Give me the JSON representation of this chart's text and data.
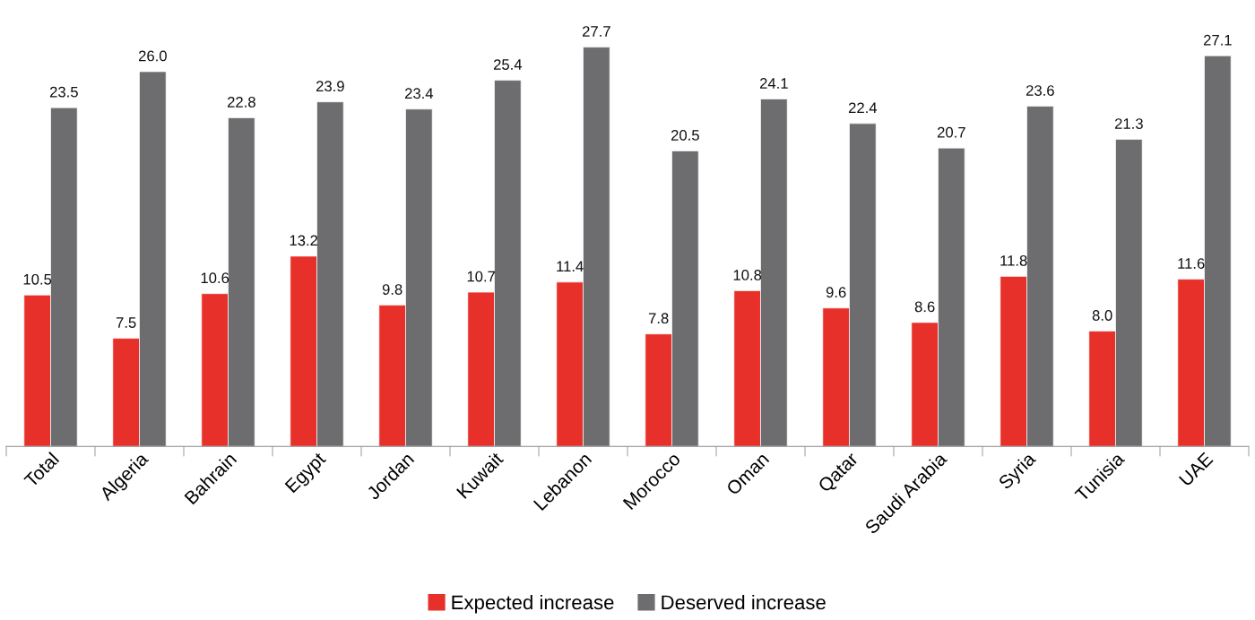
{
  "chart_data": {
    "type": "bar",
    "categories": [
      "Total",
      "Algeria",
      "Bahrain",
      "Egypt",
      "Jordan",
      "Kuwait",
      "Lebanon",
      "Morocco",
      "Oman",
      "Qatar",
      "Saudi Arabia",
      "Syria",
      "Tunisia",
      "UAE"
    ],
    "series": [
      {
        "name": "Expected increase",
        "color": "#e8302a",
        "values": [
          10.5,
          7.5,
          10.6,
          13.2,
          9.8,
          10.7,
          11.4,
          7.8,
          10.8,
          9.6,
          8.6,
          11.8,
          8.0,
          11.6
        ],
        "value_labels": [
          "10.5",
          "7.5",
          "10.6",
          "13.2",
          "9.8",
          "10.7",
          "11.4",
          "7.8",
          "10.8",
          "9.6",
          "8.6",
          "11.8",
          "8.0",
          "11.6"
        ]
      },
      {
        "name": "Deserved increase",
        "color": "#6d6d6f",
        "values": [
          23.5,
          26.0,
          22.8,
          23.9,
          23.4,
          25.4,
          27.7,
          20.5,
          24.1,
          22.4,
          20.7,
          23.6,
          21.3,
          27.1
        ],
        "value_labels": [
          "23.5",
          "26.0",
          "22.8",
          "23.9",
          "23.4",
          "25.4",
          "27.7",
          "20.5",
          "24.1",
          "22.4",
          "20.7",
          "23.6",
          "21.3",
          "27.1"
        ]
      }
    ],
    "legend": "bottom",
    "grid": false,
    "tick_labels": "x"
  }
}
